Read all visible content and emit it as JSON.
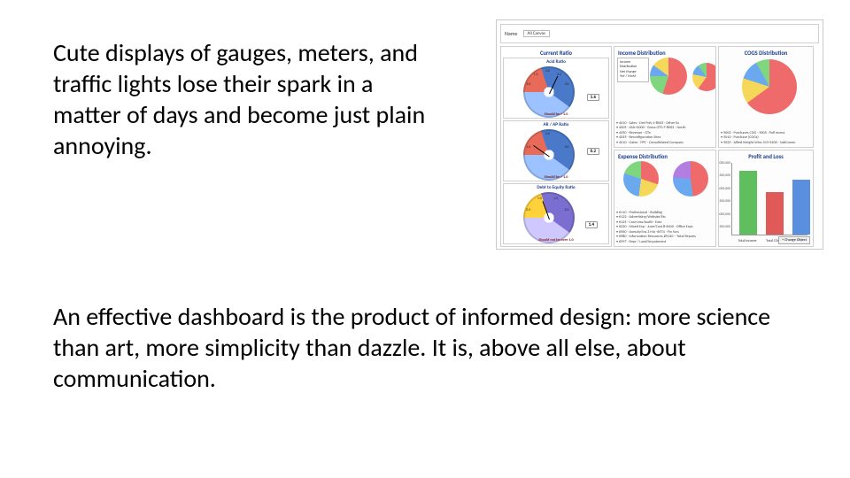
{
  "paragraph1": "Cute displays of gauges, meters, and traffic lights lose their spark in a matter of days and become just plain annoying.",
  "paragraph2": "An effective dashboard is the product of informed design: more science than art, more simplicity than dazzle. It is, above all else, about communication.",
  "dashboard": {
    "header": {
      "name": "Name",
      "canvas": "All Canvas"
    },
    "panels": {
      "income": {
        "title": "Income Distribution",
        "pie1": {
          "slices": [
            {
              "color": "#ef6a6a",
              "pct": 55
            },
            {
              "color": "#7fd67f",
              "pct": 20
            },
            {
              "color": "#6aa8ef",
              "pct": 10
            },
            {
              "color": "#f5d85a",
              "pct": 15
            }
          ]
        },
        "pie2": {
          "slices": [
            {
              "color": "#ef6a6a",
              "pct": 60
            },
            {
              "color": "#f5d85a",
              "pct": 18
            },
            {
              "color": "#6aa8ef",
              "pct": 12
            },
            {
              "color": "#7fd67f",
              "pct": 10
            }
          ]
        },
        "legend_box": [
          "Income Distribution",
          "Net change",
          "YoY / MoM"
        ],
        "legend": [
          "4010 · Sales - Det Poly 4-8005 · Other Ex",
          "4005 · ASA+4000 - Gross GTG F-8002 - North",
          "4050 · Revenue - GTx",
          "4055 · Reconfiguration Sites",
          "4010 · Gates - PPC · Consolidated Company"
        ]
      },
      "cogs": {
        "title": "COGS Distribution",
        "pie": {
          "slices": [
            {
              "color": "#ef6a6a",
              "pct": 65
            },
            {
              "color": "#f5d85a",
              "pct": 15
            },
            {
              "color": "#6aa8ef",
              "pct": 12
            },
            {
              "color": "#7fd67f",
              "pct": 8
            }
          ]
        },
        "legend": [
          "5002 · Purchases COG - 5005 · Pull Invest",
          "5010 · Purchase (COGs)",
          "5025 · Allied Weight Wins 515-5400 - SubComm"
        ]
      },
      "expense": {
        "title": "Expense Distribution",
        "pie1": {
          "slices": [
            {
              "color": "#ef6a6a",
              "pct": 30
            },
            {
              "color": "#f5d85a",
              "pct": 22
            },
            {
              "color": "#6aa8ef",
              "pct": 28
            },
            {
              "color": "#7fd67f",
              "pct": 20
            }
          ]
        },
        "pie2": {
          "slices": [
            {
              "color": "#ef6a6a",
              "pct": 48
            },
            {
              "color": "#6aa8ef",
              "pct": 28
            },
            {
              "color": "#b27fe0",
              "pct": 24
            }
          ]
        },
        "legend": [
          "6110 · Professional - Building",
          "6122 · Advertising/Website/Etc",
          "6125 · Cost-Less/Audit - Exec",
          "6220 · Mixed Exp - June/Cost 8-6400 · Office Exps",
          "6560 · Annuity/Ins 3 Mo -6574 · Fin Svcs",
          "6580 · Information Resources #5120 – Total Repairs",
          "6597 · Depr / Land/Impairment"
        ]
      },
      "pnl": {
        "title": "Profit and Loss",
        "bars": [
          {
            "label": "Total Income",
            "value": 3000000,
            "color": "#5fbf5f"
          },
          {
            "label": "Total COGS",
            "value": 2000000,
            "color": "#e05a5a"
          },
          {
            "label": "Total Expense",
            "value": 2600000,
            "color": "#5a8fe0"
          }
        ],
        "y_ticks": [
          "3,000,000",
          "2,500,000",
          "2,000,000",
          "1,500,000",
          "1,000,000",
          "500,000"
        ],
        "footer_btn": "+ Change Object"
      },
      "gauges": {
        "col_title": "Current Ratio",
        "g": [
          {
            "title": "Acid Ratio",
            "value": "1.6",
            "caption": "Should be > 1.0",
            "face_a": "#4b79c9",
            "face_b": "#9cc2ff",
            "accent": "#e86b5a",
            "needle_deg": 25,
            "ticks": [
              "1.0",
              "1.5",
              "2.0",
              "2.5",
              "3.0"
            ]
          },
          {
            "title": "AR / AP Ratio",
            "value": "0.2",
            "caption": "Should be > 1.0",
            "face_a": "#4b79c9",
            "face_b": "#9cc2ff",
            "accent": "#e86b5a",
            "needle_deg": -55,
            "ticks": [
              "1.0",
              "2.0",
              "3.0"
            ]
          },
          {
            "title": "Debt to Equity Ratio",
            "value": "1.4",
            "caption": "Should not be over 1.0",
            "face_a": "#7a6fd1",
            "face_b": "#cfc8ff",
            "accent": "#ffd23a",
            "needle_deg": -20,
            "ticks": [
              "0.5",
              "1.0",
              "1.5",
              "2.0"
            ]
          }
        ]
      }
    }
  }
}
